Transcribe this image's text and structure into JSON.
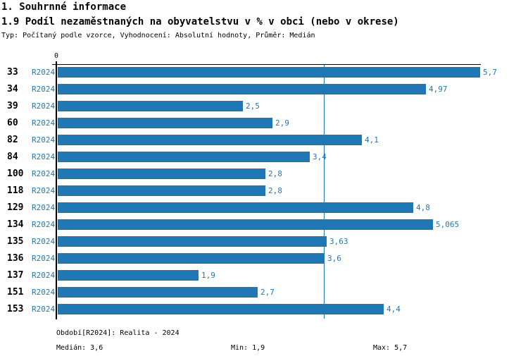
{
  "header": {
    "section_title": "1. Souhrnné informace",
    "chart_title": "1.9 Podíl nezaměstnaných na obyvatelstvu v % v obci (nebo v okrese)",
    "subtitle": "Typ: Počítaný podle vzorce, Vyhodnocení: Absolutní hodnoty, Průměr: Medián"
  },
  "chart_data": {
    "type": "bar",
    "orientation": "horizontal",
    "title": "1.9 Podíl nezaměstnaných na obyvatelstvu v % v obci (nebo v okrese)",
    "axis_zero_label": "0",
    "series_name": "R2024",
    "categories": [
      "33",
      "34",
      "39",
      "60",
      "82",
      "84",
      "100",
      "118",
      "129",
      "134",
      "135",
      "136",
      "137",
      "151",
      "153"
    ],
    "series_labels": [
      "R2024",
      "R2024",
      "R2024",
      "R2024",
      "R2024",
      "R2024",
      "R2024",
      "R2024",
      "R2024",
      "R2024",
      "R2024",
      "R2024",
      "R2024",
      "R2024",
      "R2024"
    ],
    "values": [
      5.7,
      4.97,
      2.5,
      2.9,
      4.1,
      3.4,
      2.8,
      2.8,
      4.8,
      5.065,
      3.63,
      3.6,
      1.9,
      2.7,
      4.4
    ],
    "value_labels": [
      "5,7",
      "4,97",
      "2,5",
      "2,9",
      "4,1",
      "3,4",
      "2,8",
      "2,8",
      "4,8",
      "5,065",
      "3,63",
      "3,6",
      "1,9",
      "2,7",
      "4,4"
    ],
    "xlim": [
      0,
      5.7
    ],
    "median_line_value": 3.6,
    "grid": false,
    "legend_position": "none"
  },
  "footer": {
    "period_label": "Období[R2024]: Realita - 2024",
    "median_label": "Medián: 3,6",
    "min_label": "Min: 1,9",
    "max_label": "Max: 5,7"
  },
  "colors": {
    "bar": "#1f77b4",
    "accent_text": "#1f77b4",
    "median_line": "#1f77b4",
    "axis": "#000000"
  }
}
